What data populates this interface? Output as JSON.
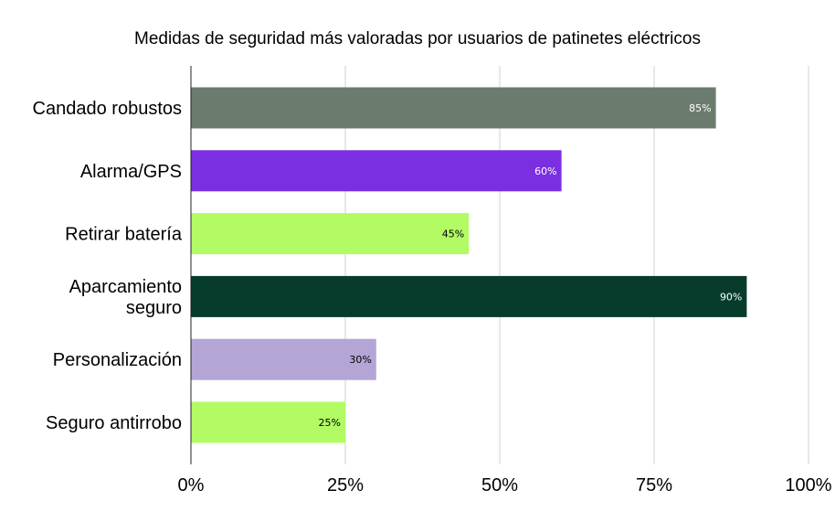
{
  "chart_data": {
    "type": "bar",
    "orientation": "horizontal",
    "title": "Medidas de seguridad más valoradas por usuarios de patinetes eléctricos",
    "xlabel": "",
    "ylabel": "",
    "xlim": [
      0,
      100
    ],
    "grid": true,
    "legend": "none",
    "categories": [
      [
        "Candado robustos"
      ],
      [
        "Alarma/GPS"
      ],
      [
        "Retirar batería"
      ],
      [
        "Aparcamiento",
        "seguro"
      ],
      [
        "Personalización"
      ],
      [
        "Seguro antirrobo"
      ]
    ],
    "values": [
      85,
      60,
      45,
      90,
      30,
      25
    ],
    "data_labels": [
      "85%",
      "60%",
      "45%",
      "90%",
      "30%",
      "25%"
    ],
    "colors": [
      "#6b7c6f",
      "#7b2fe0",
      "#b2fb64",
      "#073b2c",
      "#b3a6d6",
      "#b2fb64"
    ],
    "label_colors": [
      "#ffffff",
      "#ffffff",
      "#000000",
      "#ffffff",
      "#000000",
      "#000000"
    ],
    "ticks": [
      0,
      25,
      50,
      75,
      100
    ],
    "tick_labels": [
      "0%",
      "25%",
      "50%",
      "75%",
      "100%"
    ]
  }
}
